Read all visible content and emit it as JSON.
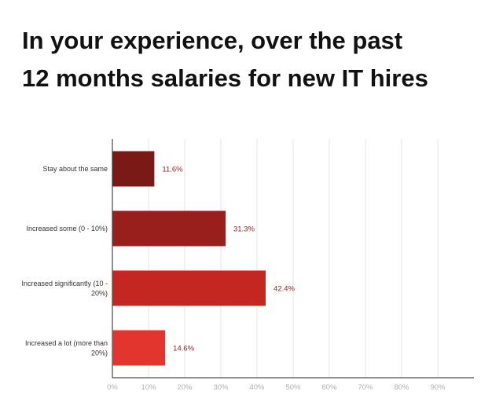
{
  "title_lines": [
    "In your experience, over the past",
    "12 months salaries for new IT hires"
  ],
  "chart_data": {
    "type": "bar",
    "orientation": "horizontal",
    "title": "In your experience, over the past 12 months salaries for new IT hires",
    "categories": [
      [
        "Stay about the same"
      ],
      [
        "Increased some (0 - 10%)"
      ],
      [
        "Increased significantly (10 -",
        "20%)"
      ],
      [
        "Increased a lot (more than",
        "20%)"
      ]
    ],
    "values": [
      11.6,
      31.3,
      42.4,
      14.6
    ],
    "value_labels": [
      "11.6%",
      "31.3%",
      "42.4%",
      "14.6%"
    ],
    "bar_colors": [
      "#7a1a16",
      "#981f1b",
      "#c42622",
      "#e2352e"
    ],
    "xlim": [
      0,
      100
    ],
    "x_ticks": [
      0,
      10,
      20,
      30,
      40,
      50,
      60,
      70,
      80,
      90
    ],
    "x_tick_labels": [
      "0%",
      "10%",
      "20%",
      "30%",
      "40%",
      "50%",
      "60%",
      "70%",
      "80%",
      "90%"
    ],
    "grid": true,
    "legend": "none"
  }
}
